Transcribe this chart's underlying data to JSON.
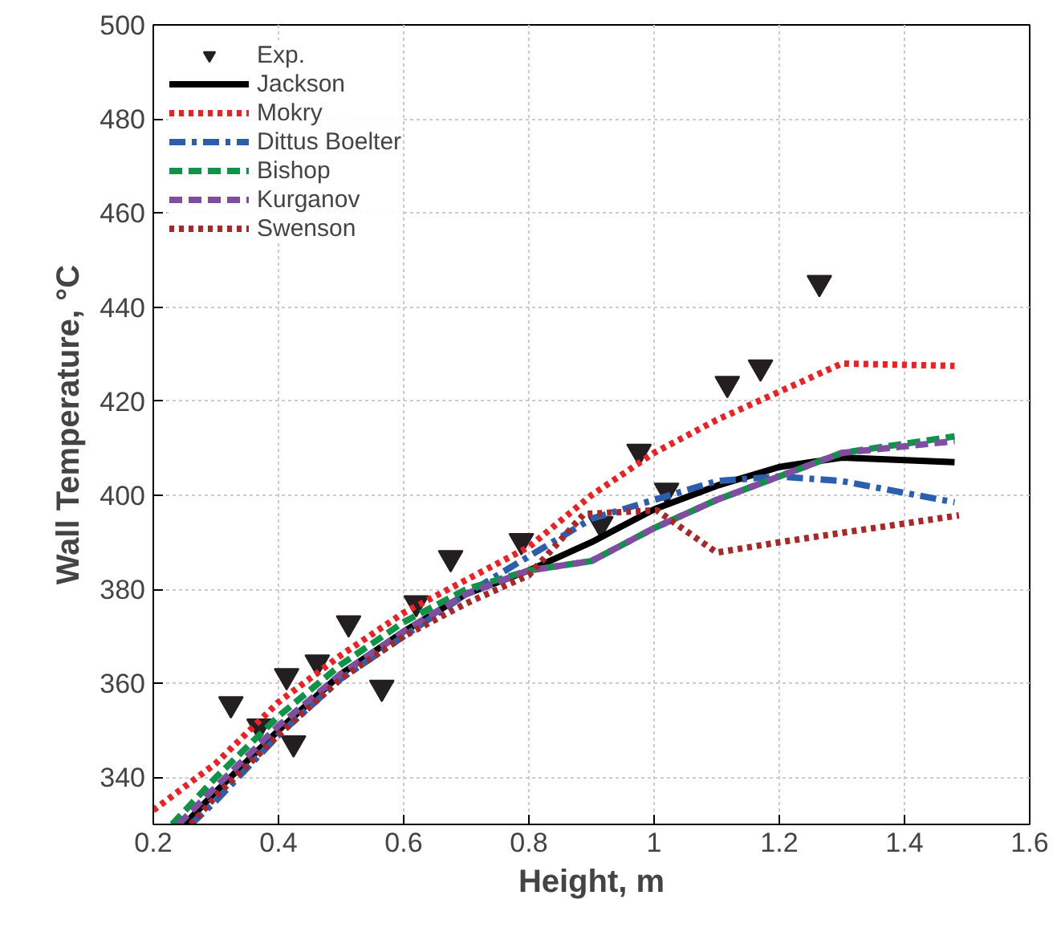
{
  "chart_data": {
    "type": "line",
    "xlabel": "Height, m",
    "ylabel": "Wall Temperature, °C",
    "xlim": [
      0.2,
      1.6
    ],
    "ylim": [
      330,
      500
    ],
    "xticks": [
      0.2,
      0.4,
      0.6,
      0.8,
      {
        "value": 1,
        "label": "1"
      },
      1.2,
      1.4,
      1.6
    ],
    "yticks": [
      340,
      360,
      380,
      400,
      420,
      440,
      460,
      480,
      500
    ],
    "grid": true,
    "legend": "top left",
    "series": [
      {
        "name": "Exp.",
        "type": "scatter",
        "marker": "triangle",
        "color": "#231f20",
        "x": [
          0.324,
          0.369,
          0.413,
          0.424,
          0.462,
          0.512,
          0.565,
          0.62,
          0.675,
          0.788,
          0.915,
          0.976,
          1.02,
          1.117,
          1.17,
          1.264
        ],
        "values": [
          355.6,
          350.9,
          361.6,
          347.3,
          364.5,
          372.8,
          359.1,
          377.1,
          386.7,
          390.3,
          393.9,
          409.3,
          401,
          423.7,
          427.2,
          445.2
        ]
      },
      {
        "name": "Jackson",
        "color": "#000000",
        "line_style": "solid",
        "x": [
          0.25,
          0.3,
          0.4,
          0.5,
          0.6,
          0.7,
          0.8,
          0.9,
          1.0,
          1.1,
          1.2,
          1.3,
          1.48
        ],
        "values": [
          330,
          337,
          350,
          362,
          371,
          379,
          384,
          390,
          397,
          402,
          406,
          408,
          407
        ]
      },
      {
        "name": "Mokry",
        "color": "#ed2024",
        "line_style": "dotted",
        "x": [
          0.2,
          0.3,
          0.4,
          0.5,
          0.6,
          0.7,
          0.8,
          0.9,
          1.0,
          1.1,
          1.2,
          1.3,
          1.48
        ],
        "values": [
          333,
          343,
          356,
          366,
          375,
          382,
          389,
          400,
          409,
          416,
          422,
          428,
          427.5
        ]
      },
      {
        "name": "Dittus Boelter",
        "color": "#2b5fae",
        "line_style": "dashdot",
        "x": [
          0.26,
          0.3,
          0.4,
          0.5,
          0.6,
          0.7,
          0.8,
          0.9,
          1.0,
          1.1,
          1.2,
          1.3,
          1.48
        ],
        "values": [
          330,
          335,
          349,
          361,
          370,
          379,
          387,
          395,
          399,
          403,
          404,
          403,
          398.5
        ]
      },
      {
        "name": "Bishop",
        "color": "#0f9347",
        "line_style": "dashed",
        "x": [
          0.23,
          0.3,
          0.4,
          0.5,
          0.6,
          0.7,
          0.8,
          0.9,
          1.0,
          1.1,
          1.2,
          1.3,
          1.48
        ],
        "values": [
          330,
          340,
          353,
          364,
          373,
          380,
          384,
          386,
          393,
          399,
          404,
          409,
          412.5
        ]
      },
      {
        "name": "Kurganov",
        "color": "#7f4ea0",
        "line_style": "dashed",
        "x": [
          0.24,
          0.3,
          0.4,
          0.5,
          0.6,
          0.7,
          0.8,
          0.9,
          1.0,
          1.1,
          1.2,
          1.3,
          1.48
        ],
        "values": [
          330,
          338,
          351,
          362,
          371,
          379,
          384,
          386,
          393,
          399,
          404,
          409,
          411.5
        ]
      },
      {
        "name": "Swenson",
        "color": "#a8282a",
        "line_style": "dotted",
        "x": [
          0.26,
          0.3,
          0.4,
          0.5,
          0.6,
          0.7,
          0.8,
          0.888,
          1.004,
          1.1,
          1.2,
          1.3,
          1.487
        ],
        "values": [
          330,
          336,
          349,
          361,
          370,
          377,
          383,
          396,
          396.8,
          387.8,
          390,
          392,
          395.7
        ]
      }
    ]
  }
}
